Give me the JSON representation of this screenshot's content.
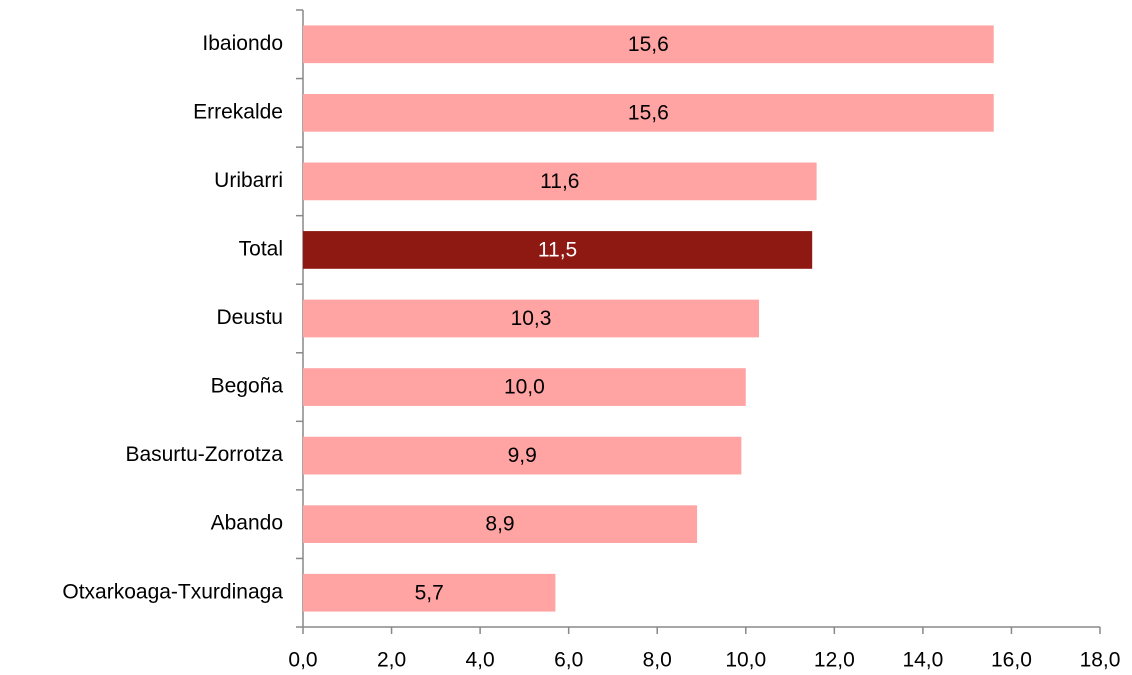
{
  "chart_data": {
    "type": "hbar",
    "categories": [
      "Ibaiondo",
      "Errekalde",
      "Uribarri",
      "Total",
      "Deustu",
      "Begoña",
      "Basurtu-Zorrotza",
      "Abando",
      "Otxarkoaga-Txurdinaga"
    ],
    "values": [
      15.6,
      15.6,
      11.6,
      11.5,
      10.3,
      10.0,
      9.9,
      8.9,
      5.7
    ],
    "value_labels": [
      "15,6",
      "15,6",
      "11,6",
      "11,5",
      "10,3",
      "10,0",
      "9,9",
      "8,9",
      "5,7"
    ],
    "colors": [
      "#ffa3a3",
      "#ffa3a3",
      "#ffa3a3",
      "#8e1812",
      "#ffa3a3",
      "#ffa3a3",
      "#ffa3a3",
      "#ffa3a3",
      "#ffa3a3"
    ],
    "xlim": [
      0,
      18
    ],
    "xticks": [
      {
        "value": 0,
        "label": "0,0"
      },
      {
        "value": 2,
        "label": "2,0"
      },
      {
        "value": 4,
        "label": "4,0"
      },
      {
        "value": 6,
        "label": "6,0"
      },
      {
        "value": 8,
        "label": "8,0"
      },
      {
        "value": 10,
        "label": "10,0"
      },
      {
        "value": 12,
        "label": "12,0"
      },
      {
        "value": 14,
        "label": "14,0"
      },
      {
        "value": 16,
        "label": "16,0"
      },
      {
        "value": 18,
        "label": "18,0"
      }
    ]
  }
}
